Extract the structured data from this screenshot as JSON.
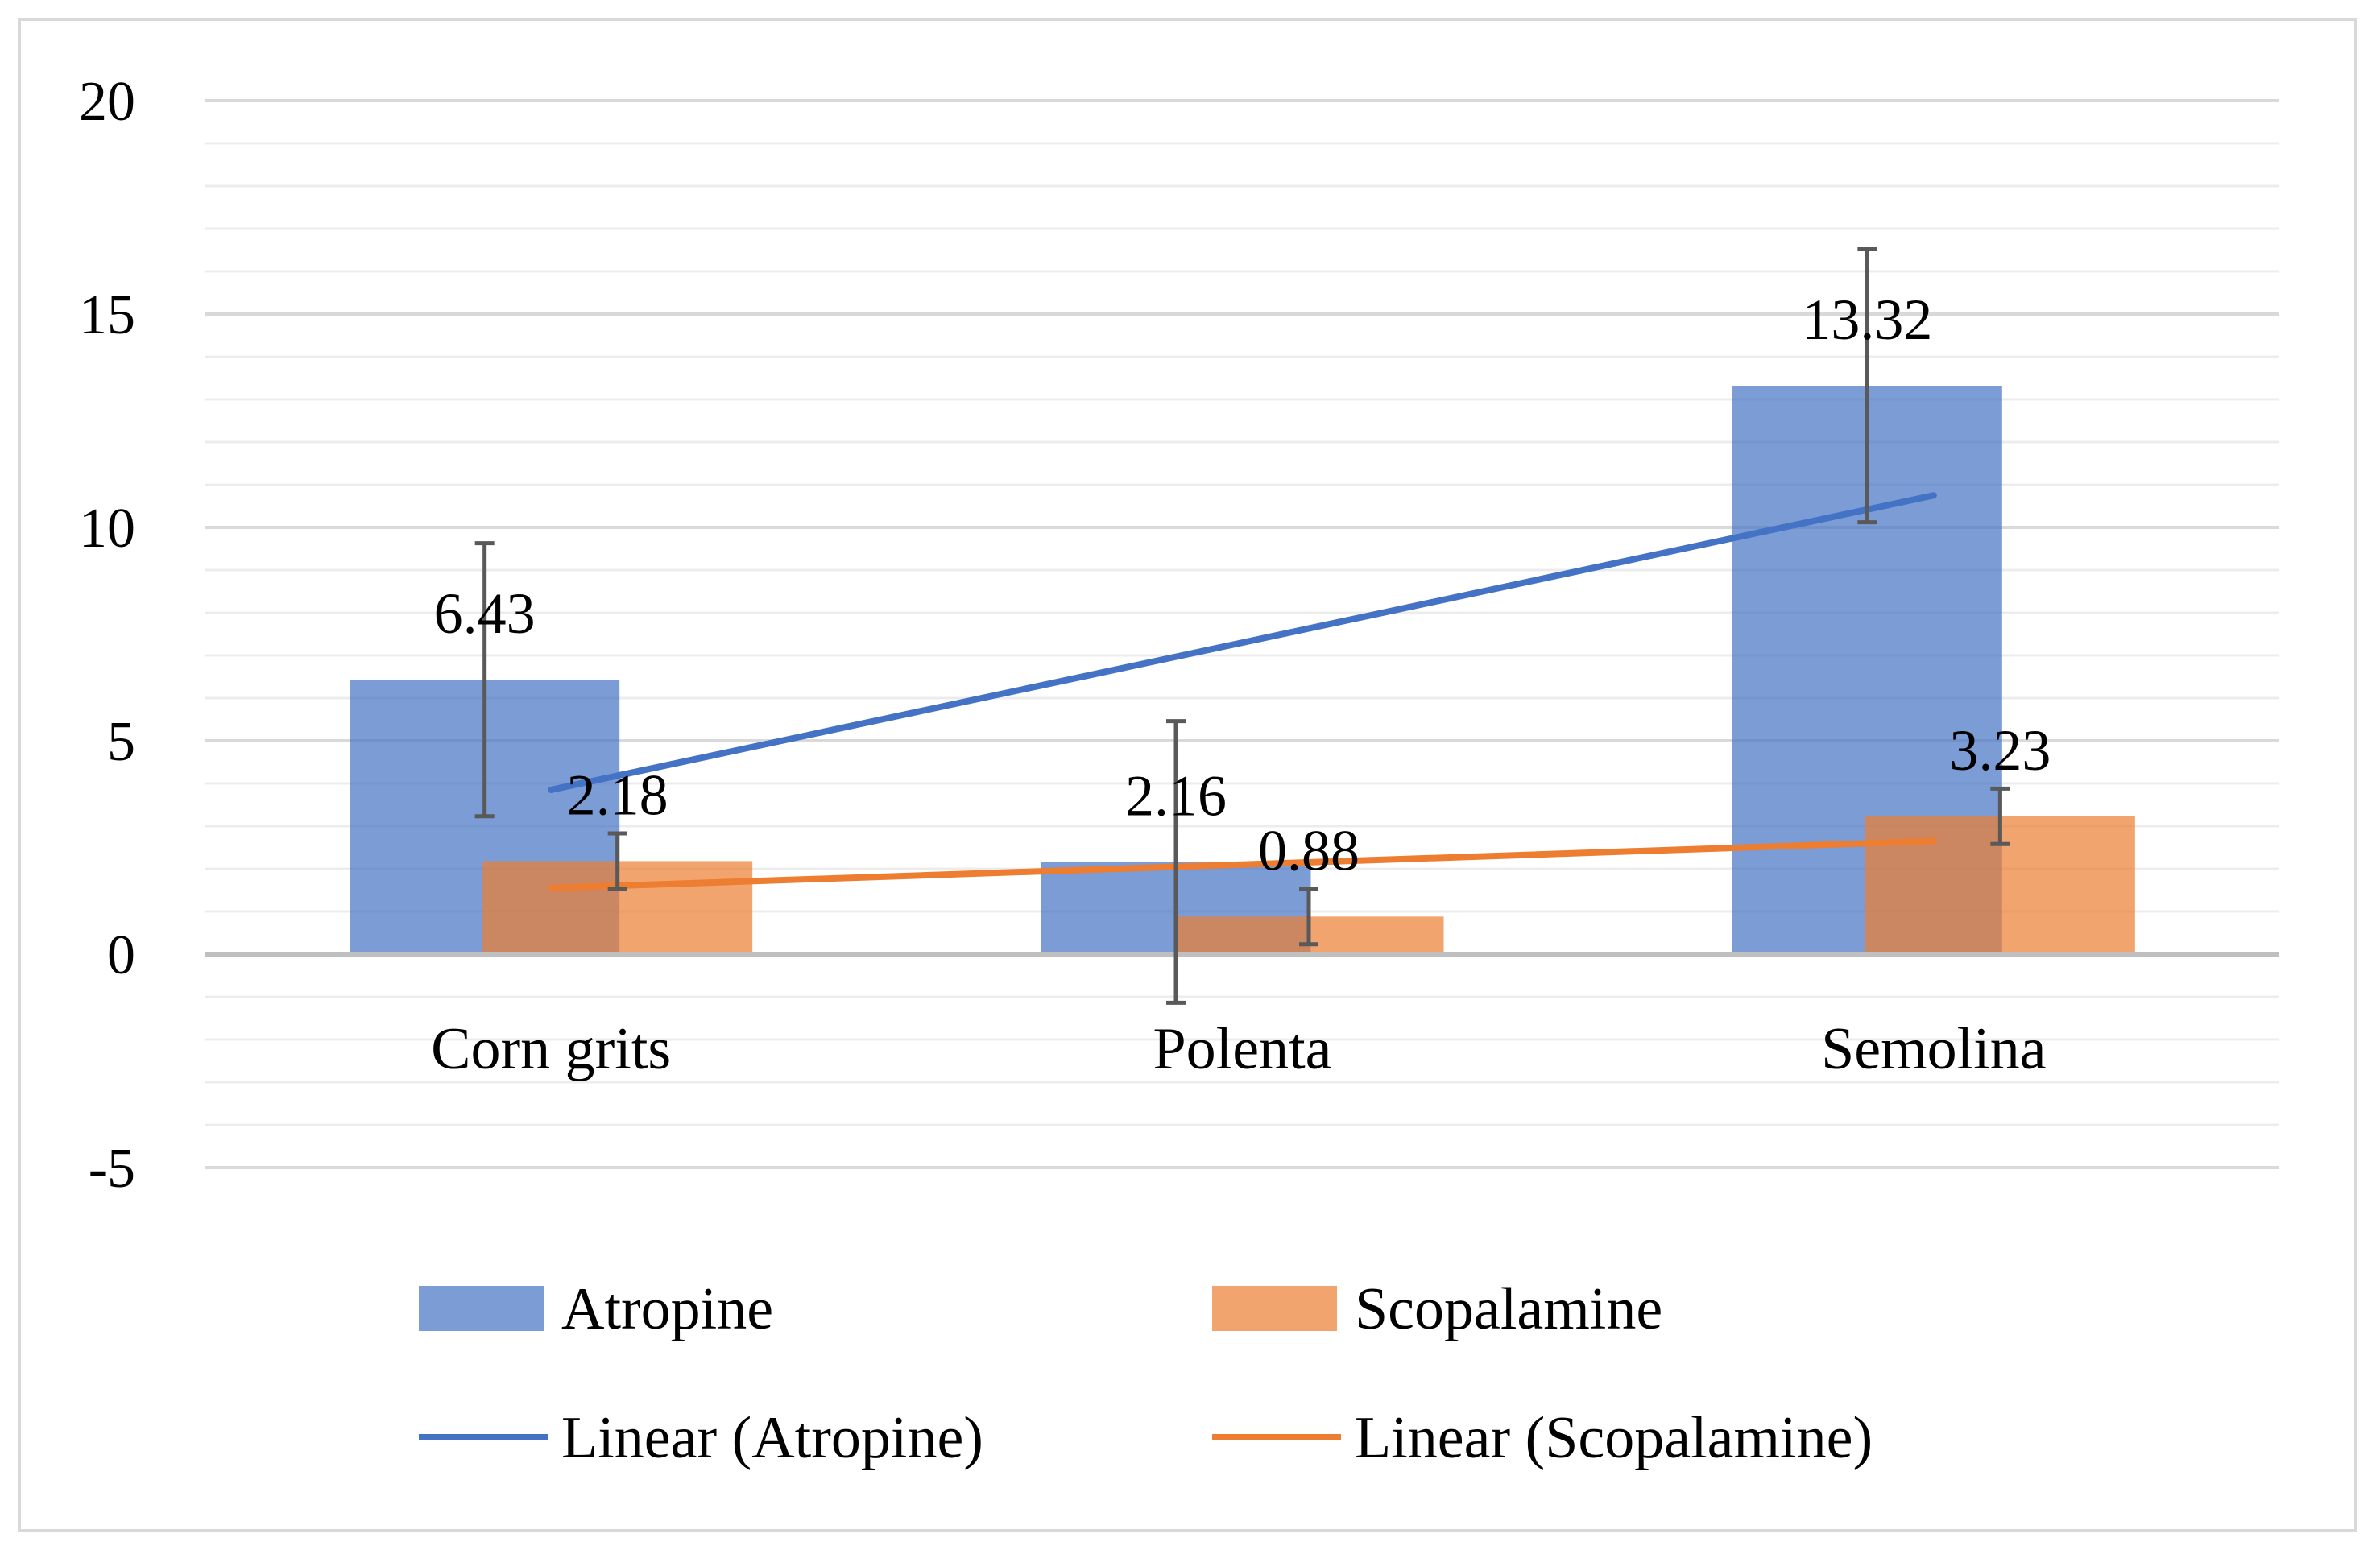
{
  "chart_data": {
    "type": "bar",
    "title": "",
    "xlabel": "",
    "ylabel": "",
    "ylim": [
      -5,
      20
    ],
    "y_ticks": [
      20,
      15,
      10,
      5,
      0,
      -5
    ],
    "y_tick_labels": [
      "20",
      "15",
      "10",
      "5",
      "0",
      "-5"
    ],
    "grid": true,
    "categories": [
      "Corn grits",
      "Polenta",
      "Semolina"
    ],
    "series": [
      {
        "name": "Atropine",
        "color": "#4472c4",
        "values": [
          6.43,
          2.16,
          13.32
        ],
        "value_labels": [
          "6.43",
          "2.16",
          "13.32"
        ],
        "error": [
          3.2,
          3.3,
          3.2
        ]
      },
      {
        "name": "Scopalamine",
        "color": "#ed7d31",
        "values": [
          2.18,
          0.88,
          3.23
        ],
        "value_labels": [
          "2.18",
          "0.88",
          "3.23"
        ],
        "error": [
          0.65,
          0.65,
          0.65
        ]
      }
    ],
    "trendlines": [
      {
        "name": "Linear (Atropine)",
        "series": "Atropine",
        "color": "#4472c4",
        "start": 3.85,
        "end": 10.75
      },
      {
        "name": "Linear (Scopalamine)",
        "series": "Scopalamine",
        "color": "#ed7d31",
        "start": 1.55,
        "end": 2.65
      }
    ],
    "legend": {
      "position": "bottom",
      "entries": [
        "Atropine",
        "Scopalamine",
        "Linear (Atropine)",
        "Linear (Scopalamine)"
      ]
    }
  }
}
